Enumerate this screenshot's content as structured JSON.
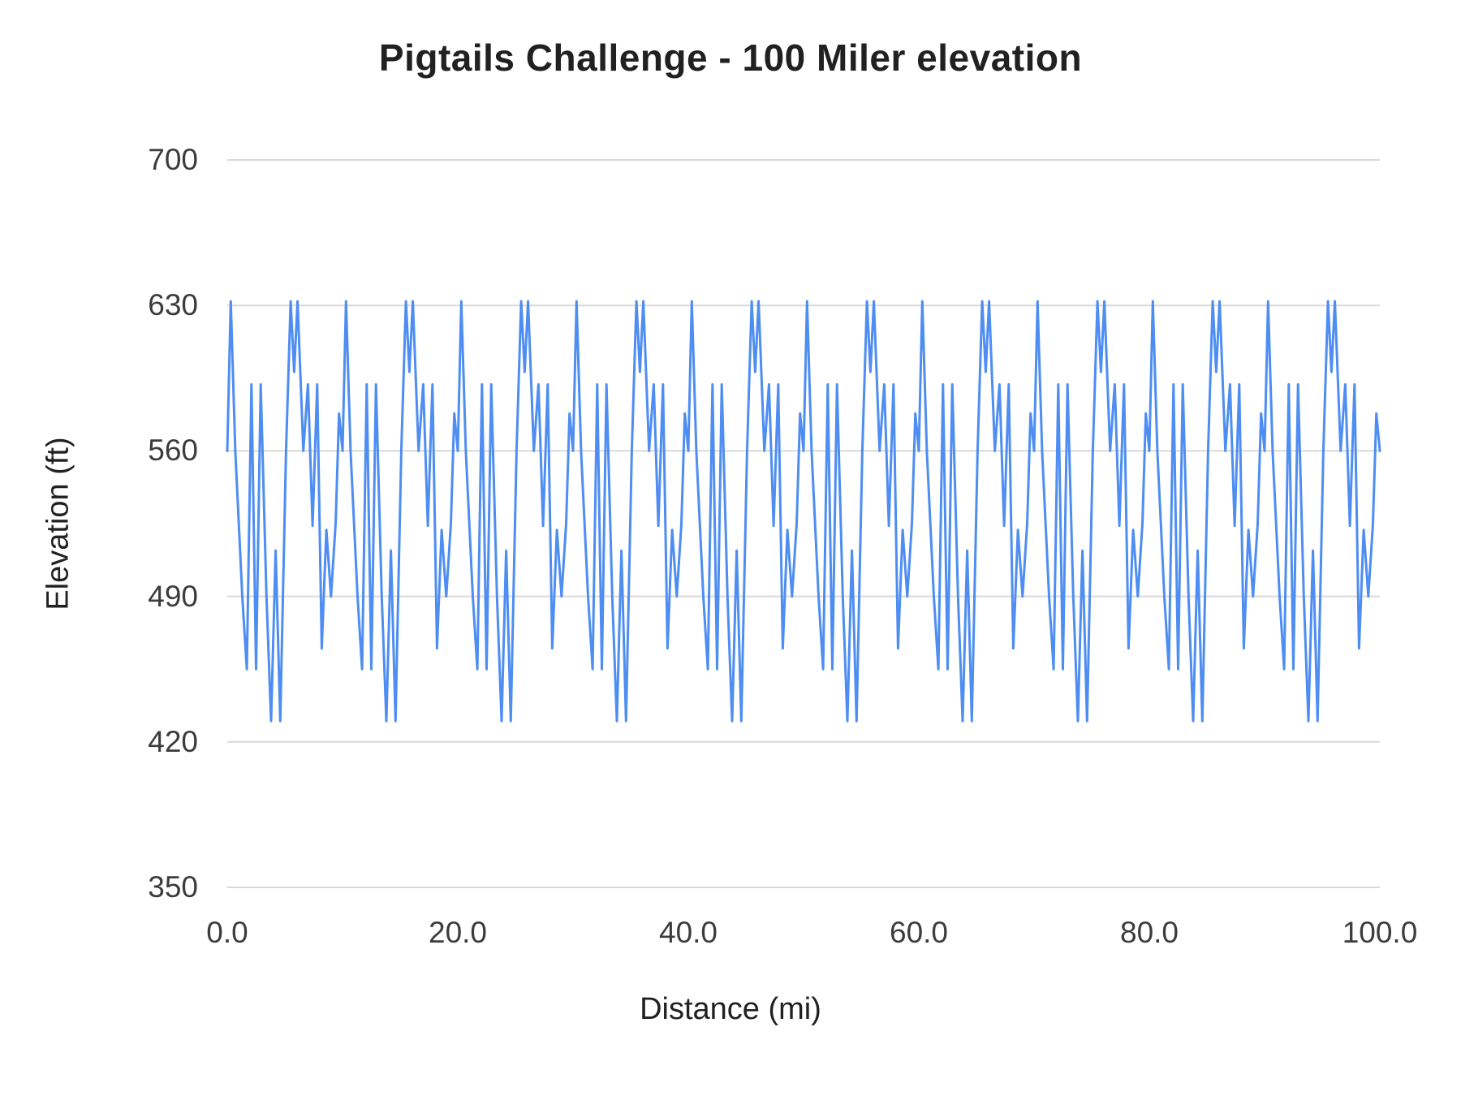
{
  "page": {
    "background": "#ffffff"
  },
  "chart_data": {
    "type": "line",
    "title": "Pigtails Challenge - 100 Miler elevation",
    "xlabel": "Distance (mi)",
    "ylabel": "Elevation (ft)",
    "xlim": [
      0,
      100
    ],
    "ylim": [
      350,
      700
    ],
    "x_ticks": [
      0,
      20,
      40,
      60,
      80,
      100
    ],
    "x_tick_labels": [
      "0.0",
      "20.0",
      "40.0",
      "60.0",
      "80.0",
      "100.0"
    ],
    "y_ticks": [
      350,
      420,
      490,
      560,
      630,
      700
    ],
    "y_tick_labels": [
      "350",
      "420",
      "490",
      "560",
      "630",
      "700"
    ],
    "grid": "horizontal",
    "legend": "none",
    "line_color": "#4e8df2",
    "grid_color": "#d9d9d9",
    "title_color": "#212121",
    "axis_text_color": "#3c3c3c",
    "series": [
      {
        "name": "Elevation",
        "x": [
          0,
          0.3,
          0.7,
          1.3,
          1.7,
          2.1,
          2.5,
          2.9,
          3.4,
          3.8,
          4.2,
          4.6,
          5.1,
          5.5,
          5.8,
          6.1,
          6.6,
          7,
          7.4,
          7.8,
          8.2,
          8.6,
          9,
          9.4,
          9.7,
          10,
          10.3,
          10.7,
          11.3,
          11.7,
          12.1,
          12.5,
          12.9,
          13.4,
          13.8,
          14.2,
          14.6,
          15.1,
          15.5,
          15.8,
          16.1,
          16.6,
          17,
          17.4,
          17.8,
          18.2,
          18.6,
          19,
          19.4,
          19.7,
          20,
          20.3,
          20.7,
          21.3,
          21.7,
          22.1,
          22.5,
          22.9,
          23.4,
          23.8,
          24.2,
          24.6,
          25.1,
          25.5,
          25.8,
          26.1,
          26.6,
          27,
          27.4,
          27.8,
          28.2,
          28.6,
          29,
          29.4,
          29.7,
          30,
          30.3,
          30.7,
          31.3,
          31.7,
          32.1,
          32.5,
          32.9,
          33.4,
          33.8,
          34.2,
          34.6,
          35.1,
          35.5,
          35.8,
          36.1,
          36.6,
          37,
          37.4,
          37.8,
          38.2,
          38.6,
          39,
          39.4,
          39.7,
          40,
          40.3,
          40.7,
          41.3,
          41.7,
          42.1,
          42.5,
          42.9,
          43.4,
          43.8,
          44.2,
          44.6,
          45.1,
          45.5,
          45.8,
          46.1,
          46.6,
          47,
          47.4,
          47.8,
          48.2,
          48.6,
          49,
          49.4,
          49.7,
          50,
          50.3,
          50.7,
          51.3,
          51.7,
          52.1,
          52.5,
          52.9,
          53.4,
          53.8,
          54.2,
          54.6,
          55.1,
          55.5,
          55.8,
          56.1,
          56.6,
          57,
          57.4,
          57.8,
          58.2,
          58.6,
          59,
          59.4,
          59.7,
          60,
          60.3,
          60.7,
          61.3,
          61.7,
          62.1,
          62.5,
          62.9,
          63.4,
          63.8,
          64.2,
          64.6,
          65.1,
          65.5,
          65.8,
          66.1,
          66.6,
          67,
          67.4,
          67.8,
          68.2,
          68.6,
          69,
          69.4,
          69.7,
          70,
          70.3,
          70.7,
          71.3,
          71.7,
          72.1,
          72.5,
          72.9,
          73.4,
          73.8,
          74.2,
          74.6,
          75.1,
          75.5,
          75.8,
          76.1,
          76.6,
          77,
          77.4,
          77.8,
          78.2,
          78.6,
          79,
          79.4,
          79.7,
          80,
          80.3,
          80.7,
          81.3,
          81.7,
          82.1,
          82.5,
          82.9,
          83.4,
          83.8,
          84.2,
          84.6,
          85.1,
          85.5,
          85.8,
          86.1,
          86.6,
          87,
          87.4,
          87.8,
          88.2,
          88.6,
          89,
          89.4,
          89.7,
          90,
          90.3,
          90.7,
          91.3,
          91.7,
          92.1,
          92.5,
          92.9,
          93.4,
          93.8,
          94.2,
          94.6,
          95.1,
          95.5,
          95.8,
          96.1,
          96.6,
          97,
          97.4,
          97.8,
          98.2,
          98.6,
          99,
          99.4,
          99.7,
          100
        ],
        "y": [
          560,
          632,
          560,
          490,
          455,
          592,
          455,
          592,
          490,
          430,
          512,
          430,
          560,
          632,
          598,
          632,
          560,
          592,
          524,
          592,
          465,
          522,
          490,
          525,
          578,
          560,
          632,
          560,
          490,
          455,
          592,
          455,
          592,
          490,
          430,
          512,
          430,
          560,
          632,
          598,
          632,
          560,
          592,
          524,
          592,
          465,
          522,
          490,
          525,
          578,
          560,
          632,
          560,
          490,
          455,
          592,
          455,
          592,
          490,
          430,
          512,
          430,
          560,
          632,
          598,
          632,
          560,
          592,
          524,
          592,
          465,
          522,
          490,
          525,
          578,
          560,
          632,
          560,
          490,
          455,
          592,
          455,
          592,
          490,
          430,
          512,
          430,
          560,
          632,
          598,
          632,
          560,
          592,
          524,
          592,
          465,
          522,
          490,
          525,
          578,
          560,
          632,
          560,
          490,
          455,
          592,
          455,
          592,
          490,
          430,
          512,
          430,
          560,
          632,
          598,
          632,
          560,
          592,
          524,
          592,
          465,
          522,
          490,
          525,
          578,
          560,
          632,
          560,
          490,
          455,
          592,
          455,
          592,
          490,
          430,
          512,
          430,
          560,
          632,
          598,
          632,
          560,
          592,
          524,
          592,
          465,
          522,
          490,
          525,
          578,
          560,
          632,
          560,
          490,
          455,
          592,
          455,
          592,
          490,
          430,
          512,
          430,
          560,
          632,
          598,
          632,
          560,
          592,
          524,
          592,
          465,
          522,
          490,
          525,
          578,
          560,
          632,
          560,
          490,
          455,
          592,
          455,
          592,
          490,
          430,
          512,
          430,
          560,
          632,
          598,
          632,
          560,
          592,
          524,
          592,
          465,
          522,
          490,
          525,
          578,
          560,
          632,
          560,
          490,
          455,
          592,
          455,
          592,
          490,
          430,
          512,
          430,
          560,
          632,
          598,
          632,
          560,
          592,
          524,
          592,
          465,
          522,
          490,
          525,
          578,
          560,
          632,
          560,
          490,
          455,
          592,
          455,
          592,
          490,
          430,
          512,
          430,
          560,
          632,
          598,
          632,
          560,
          592,
          524,
          592,
          465,
          522,
          490,
          525,
          578,
          560
        ]
      }
    ]
  }
}
